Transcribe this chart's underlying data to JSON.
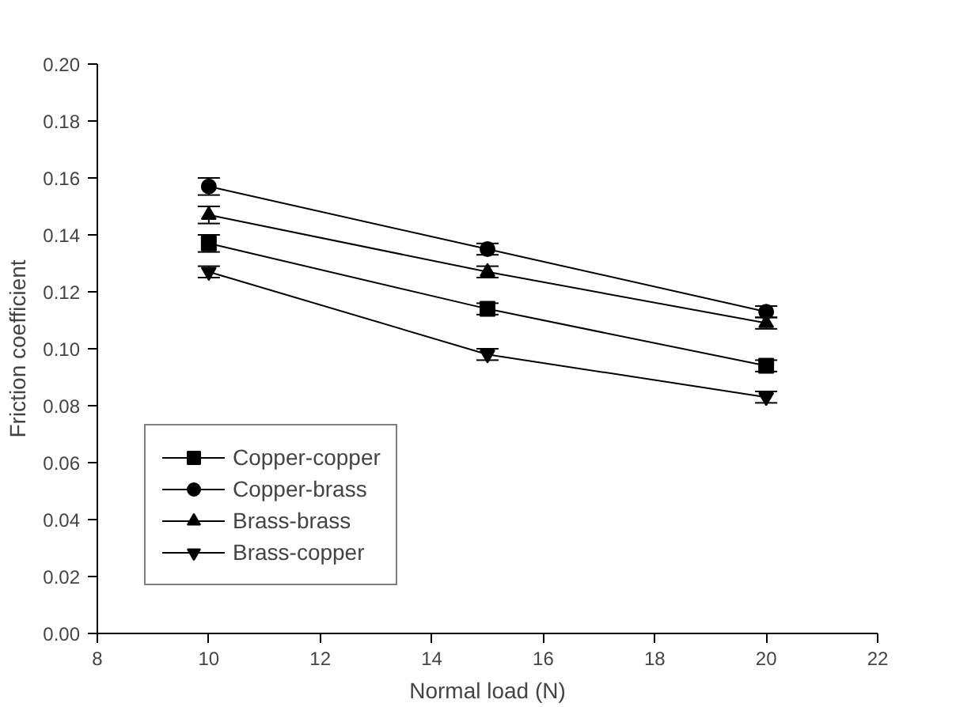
{
  "chart_data": {
    "type": "line",
    "xlabel": "Normal load (N)",
    "ylabel": "Friction coefficient",
    "x": [
      10,
      15,
      20
    ],
    "series": [
      {
        "name": "Copper-copper",
        "color": "#000000",
        "marker": "square",
        "values": [
          0.137,
          0.114,
          0.094
        ],
        "errors": [
          0.003,
          0.002,
          0.002
        ]
      },
      {
        "name": "Copper-brass",
        "color": "#000000",
        "marker": "circle",
        "values": [
          0.157,
          0.135,
          0.113
        ],
        "errors": [
          0.003,
          0.002,
          0.002
        ]
      },
      {
        "name": "Brass-brass",
        "color": "#000000",
        "marker": "triangle",
        "values": [
          0.147,
          0.127,
          0.109
        ],
        "errors": [
          0.003,
          0.002,
          0.002
        ]
      },
      {
        "name": "Brass-copper",
        "color": "#000000",
        "marker": "triangle",
        "values": [
          0.127,
          0.098,
          0.083
        ],
        "errors": [
          0.002,
          0.002,
          0.002
        ]
      }
    ],
    "xlim": [
      8,
      22
    ],
    "xticks": [
      8,
      10,
      12,
      14,
      16,
      18,
      20,
      22
    ],
    "ylim": [
      0,
      0.2
    ],
    "yticks": [
      {
        "value": 0,
        "label": "0.00"
      },
      {
        "value": 0.02,
        "label": "0.02"
      },
      {
        "value": 0.04,
        "label": "0.04"
      },
      {
        "value": 0.06,
        "label": "0.06"
      },
      {
        "value": 0.08,
        "label": "0.08"
      },
      {
        "value": 0.1,
        "label": "0.10"
      },
      {
        "value": 0.12,
        "label": "0.12"
      },
      {
        "value": 0.14,
        "label": "0.14"
      },
      {
        "value": 0.16,
        "label": "0.16"
      },
      {
        "value": 0.18,
        "label": "0.18"
      },
      {
        "value": 0.2,
        "label": "0.20"
      }
    ],
    "grid": false,
    "legend": "bottom left",
    "line_style": "solid"
  }
}
